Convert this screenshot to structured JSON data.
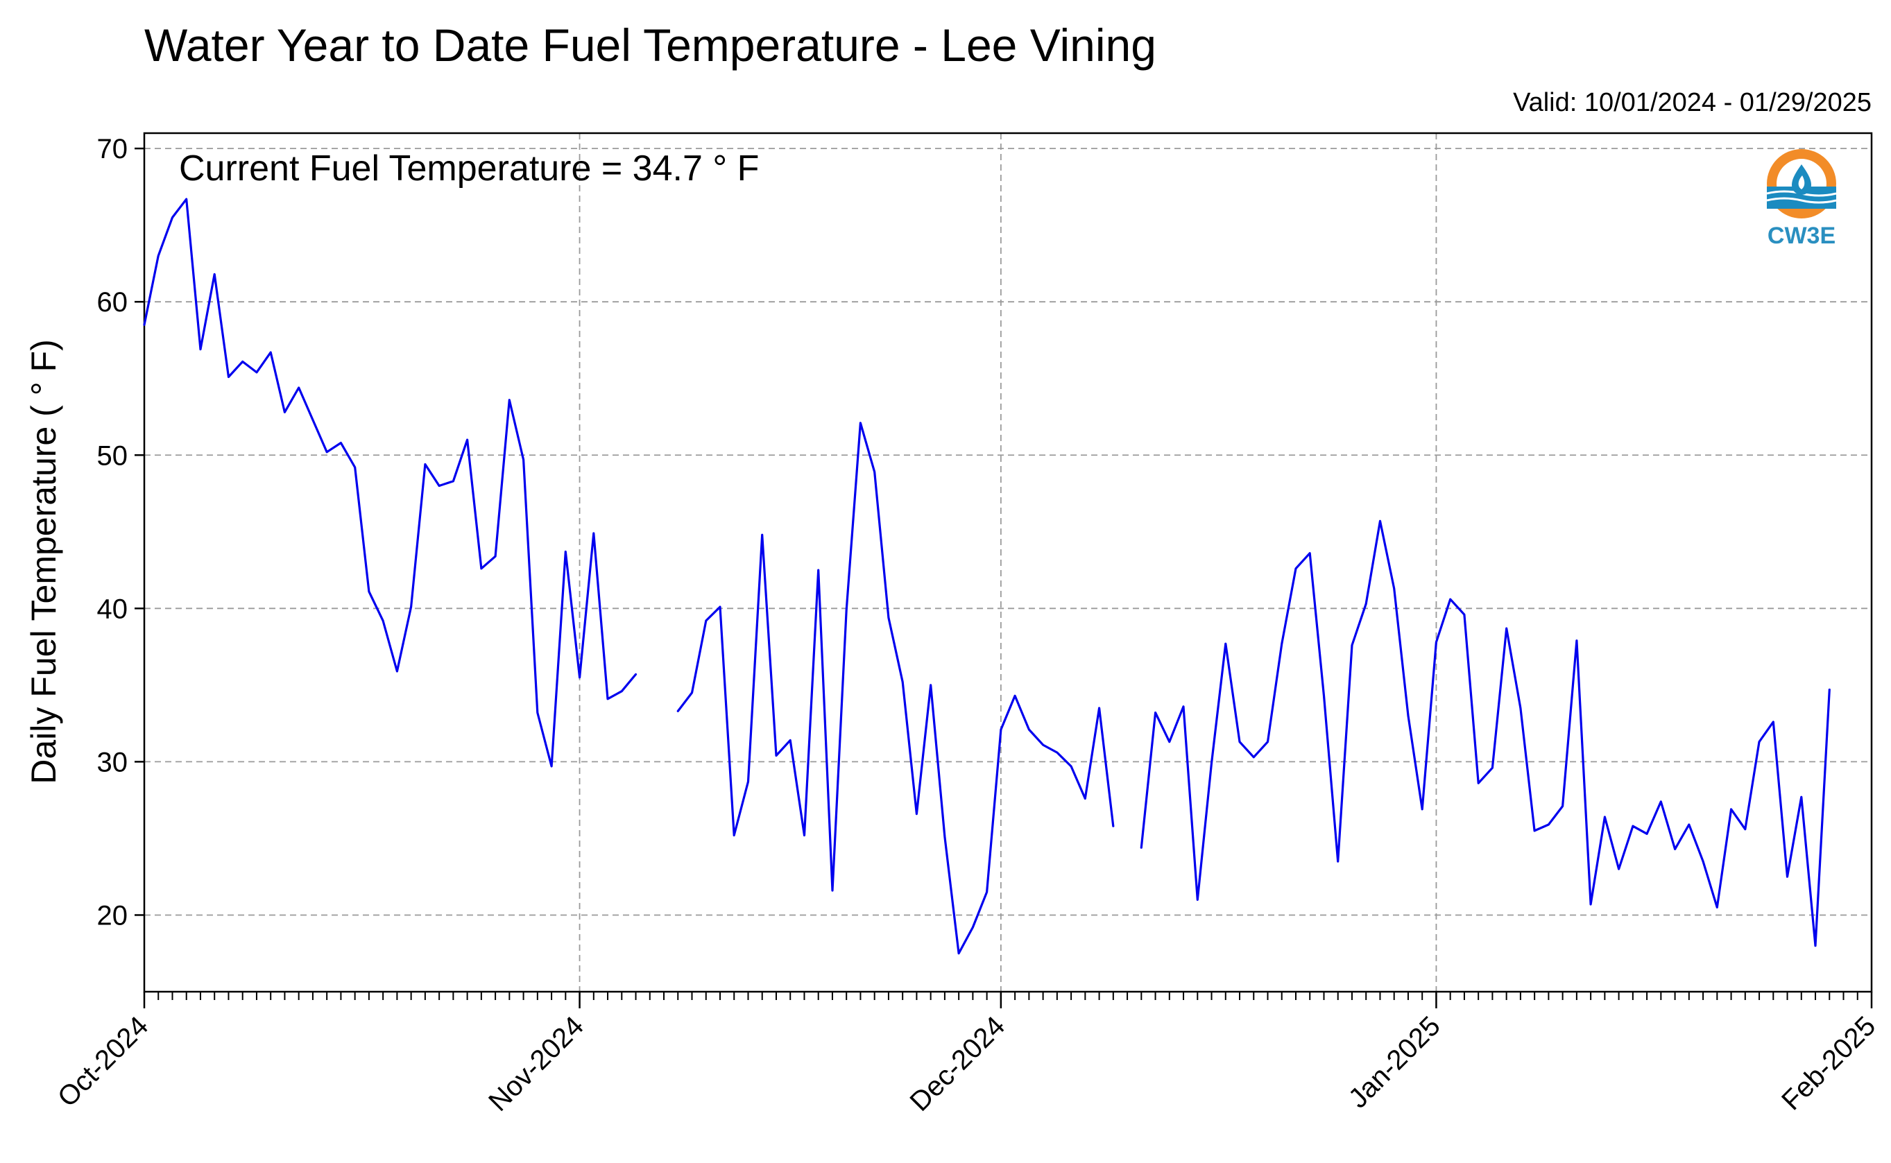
{
  "chart_data": {
    "type": "line",
    "title": "Water Year to Date Fuel Temperature - Lee Vining",
    "subtitle": "Valid: 10/01/2024 - 01/29/2025",
    "ylabel": "Daily Fuel Temperature ( ° F)",
    "xlabel": "",
    "annotation": "Current Fuel Temperature = 34.7  ° F",
    "ylim": [
      15,
      71
    ],
    "yticks": [
      20,
      30,
      40,
      50,
      60,
      70
    ],
    "xlim": [
      "2024-10-01",
      "2025-02-01"
    ],
    "xticks": [
      {
        "date": "2024-10-01",
        "label": "Oct-2024"
      },
      {
        "date": "2024-11-01",
        "label": "Nov-2024"
      },
      {
        "date": "2024-12-01",
        "label": "Dec-2024"
      },
      {
        "date": "2025-01-01",
        "label": "Jan-2025"
      },
      {
        "date": "2025-02-01",
        "label": "Feb-2025"
      }
    ],
    "grid": true,
    "line_color": "#0000ee",
    "series": [
      {
        "start": "2024-10-01",
        "values": [
          58.5,
          63,
          65.5,
          66.7,
          56.9,
          61.8,
          55.1,
          56.1,
          55.4,
          56.7,
          52.8,
          54.4,
          52.3,
          50.2,
          50.8,
          49.2,
          41.1,
          39.2,
          35.9,
          40.1,
          49.4,
          48,
          48.3,
          51,
          42.6,
          43.4,
          53.6,
          49.7,
          33.2,
          29.7,
          43.7,
          35.5,
          44.9,
          34.1,
          34.6,
          35.7,
          null,
          null,
          33.3,
          34.5,
          39.2,
          40.1,
          25.2,
          28.7,
          44.8,
          30.4,
          31.4,
          25.2,
          42.5,
          21.6,
          39.9,
          52.1,
          48.9,
          39.4,
          35.2,
          26.6,
          35,
          25.1,
          17.5,
          19.2,
          21.5,
          32.1,
          34.3,
          32.1,
          31.1,
          30.6,
          29.7,
          27.6,
          33.5,
          25.8,
          null,
          24.4,
          33.2,
          31.3,
          33.6,
          21,
          29.9,
          37.7,
          31.3,
          30.3,
          31.3,
          37.7,
          42.6,
          43.6,
          34.3,
          23.5,
          37.6,
          40.3,
          45.7,
          41.3,
          33,
          26.9,
          37.8,
          40.6,
          39.6,
          28.6,
          29.6,
          38.7,
          33.5,
          25.5,
          25.9,
          27.1,
          37.9,
          20.7,
          26.4,
          23,
          25.8,
          25.3,
          27.4,
          24.3,
          25.9,
          23.5,
          20.5,
          26.9,
          25.6,
          31.3,
          32.6,
          22.5,
          27.7,
          18,
          34.7
        ]
      }
    ]
  },
  "logo": {
    "text": "CW3E",
    "ring_color": "#f28c28",
    "wave_color": "#1b8bc0",
    "text_color": "#2a8fc0"
  }
}
